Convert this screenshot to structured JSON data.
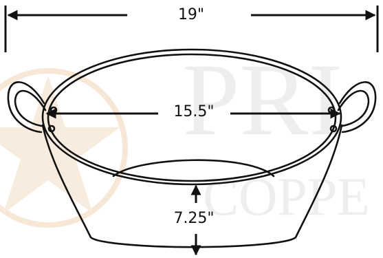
{
  "dimensions": {
    "width": "19\"",
    "inner_diameter": "15.5\"",
    "depth": "7.25\""
  },
  "watermark": {
    "line1": "PRI",
    "line2": "COPPE"
  }
}
